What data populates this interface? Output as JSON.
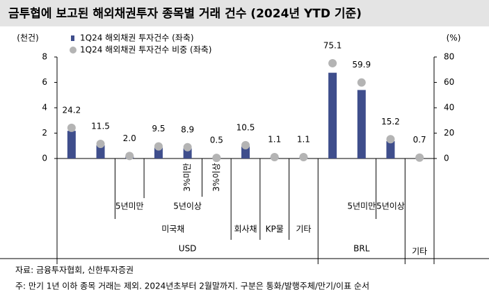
{
  "chart_data": {
    "type": "bar_dot",
    "title": "금투협에 보고된 해외채권투자 종목별 거래 건수 (2024년 YTD 기준)",
    "y_label": "(천건)",
    "y2_label": "(%)",
    "categories": [
      null,
      null,
      null,
      null,
      null,
      null,
      null,
      null,
      null,
      null,
      null,
      null,
      null
    ],
    "series": [
      {
        "name": "1Q24 해외채권 투자건수 (좌축)",
        "color": "#3f4e8c",
        "values": [
          2.18,
          1.04,
          0.18,
          0.86,
          0.8,
          0.05,
          0.95,
          0.1,
          0.1,
          6.76,
          5.4,
          1.37,
          0.06
        ]
      },
      {
        "name": "1Q24 해외채권 투자건수 비중 (좌축)",
        "color": "#b4b4b4",
        "axis": "y2",
        "values": [
          24.2,
          11.5,
          2.0,
          9.5,
          8.9,
          0.5,
          10.5,
          1.1,
          1.1,
          75.1,
          59.9,
          15.2,
          0.7
        ],
        "value_labels": [
          "24.2",
          "11.5",
          "2.0",
          "9.5",
          "8.9",
          "0.5",
          "10.5",
          "1.1",
          "1.1",
          "75.1",
          "59.9",
          "15.2",
          "0.7"
        ]
      }
    ],
    "ylim": [
      0,
      8
    ],
    "yticks": [
      0,
      2,
      4,
      6,
      8
    ],
    "y2lim": [
      0,
      80
    ],
    "y2ticks": [
      0,
      20,
      40,
      60,
      80
    ],
    "group_labels": [
      "3%미만",
      "3%이상",
      "5년미만",
      "5년이상",
      "미국채",
      "회사채",
      "KP물",
      "기타",
      "USD",
      "5년미만",
      "5년이상",
      "BRL",
      "기타"
    ]
  },
  "footer": {
    "source": "자료: 금융투자협회, 신한투자증권",
    "note": "주: 만기 1년 이하 종목 거래는 제외. 2024년초부터 2월말까지. 구분은 통화/발행주체/만기/이표 순서"
  }
}
